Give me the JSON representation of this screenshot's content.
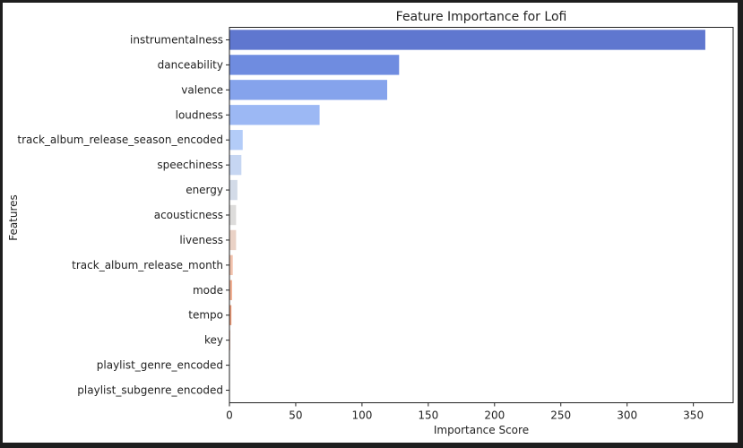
{
  "chart_data": {
    "type": "bar",
    "orientation": "horizontal",
    "title": "Feature Importance for Lofi",
    "xlabel": "Importance Score",
    "ylabel": "Features",
    "xlim": [
      0,
      380
    ],
    "xticks": [
      0,
      50,
      100,
      150,
      200,
      250,
      300,
      350
    ],
    "grid": false,
    "categories": [
      "instrumentalness",
      "danceability",
      "valence",
      "loudness",
      "track_album_release_season_encoded",
      "speechiness",
      "energy",
      "acousticness",
      "liveness",
      "track_album_release_month",
      "mode",
      "tempo",
      "key",
      "playlist_genre_encoded",
      "playlist_subgenre_encoded"
    ],
    "values": [
      359,
      128,
      119,
      68,
      10,
      9,
      6,
      5,
      5,
      2.5,
      2,
      1.5,
      0.5,
      0.2,
      0.1
    ],
    "colors": [
      "#5f77cf",
      "#6f8ce0",
      "#85a3ec",
      "#9cb8f4",
      "#b3ccf8",
      "#c6d6f2",
      "#d3dbe8",
      "#dddcdb",
      "#ead2c6",
      "#f1c2ac",
      "#f2b092",
      "#ec9b78",
      "#e3835f",
      "#d86a4b",
      "#c9503c"
    ]
  }
}
